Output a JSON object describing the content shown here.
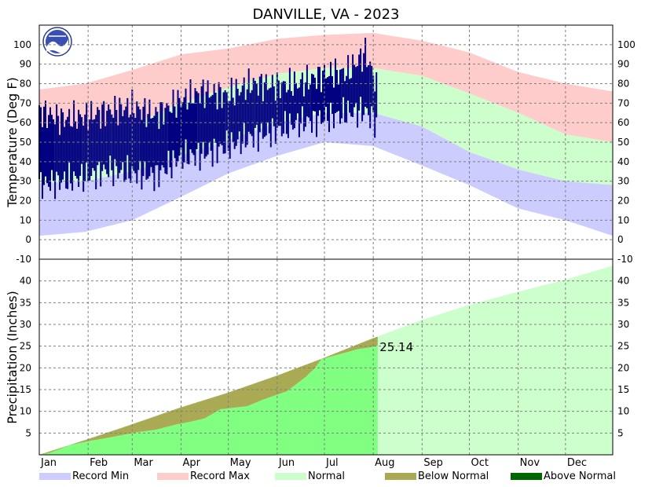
{
  "chart_data": [
    {
      "type": "bar",
      "title": "DANVILLE, VA - 2023",
      "ylabel": "Temperature (Deg F)",
      "ylim": [
        -10,
        110
      ],
      "yticks": [
        -10,
        0,
        10,
        20,
        30,
        40,
        50,
        60,
        70,
        80,
        90,
        100
      ],
      "months": [
        "Jan",
        "Feb",
        "Mar",
        "Apr",
        "May",
        "Jun",
        "Jul",
        "Aug",
        "Sep",
        "Oct",
        "Nov",
        "Dec"
      ],
      "grid": true,
      "colors": {
        "record_min": "#ccccff",
        "record_max": "#ffcccc",
        "normal": "#ccffcc",
        "observed": "#000080"
      },
      "normal_high": [
        {
          "day": 1,
          "value": 50
        },
        {
          "day": 30,
          "value": 52
        },
        {
          "day": 60,
          "value": 59
        },
        {
          "day": 91,
          "value": 70
        },
        {
          "day": 121,
          "value": 78
        },
        {
          "day": 152,
          "value": 85
        },
        {
          "day": 182,
          "value": 88
        },
        {
          "day": 213,
          "value": 88
        },
        {
          "day": 244,
          "value": 84
        },
        {
          "day": 274,
          "value": 75
        },
        {
          "day": 305,
          "value": 65
        },
        {
          "day": 335,
          "value": 54
        },
        {
          "day": 365,
          "value": 50
        }
      ],
      "normal_low": [
        {
          "day": 1,
          "value": 29
        },
        {
          "day": 30,
          "value": 30
        },
        {
          "day": 60,
          "value": 35
        },
        {
          "day": 91,
          "value": 43
        },
        {
          "day": 121,
          "value": 51
        },
        {
          "day": 152,
          "value": 60
        },
        {
          "day": 182,
          "value": 65
        },
        {
          "day": 213,
          "value": 65
        },
        {
          "day": 244,
          "value": 58
        },
        {
          "day": 274,
          "value": 45
        },
        {
          "day": 305,
          "value": 36
        },
        {
          "day": 335,
          "value": 30
        },
        {
          "day": 365,
          "value": 28
        }
      ],
      "record_high": [
        {
          "day": 1,
          "value": 77
        },
        {
          "day": 30,
          "value": 80
        },
        {
          "day": 60,
          "value": 87
        },
        {
          "day": 91,
          "value": 95
        },
        {
          "day": 121,
          "value": 98
        },
        {
          "day": 152,
          "value": 103
        },
        {
          "day": 182,
          "value": 105
        },
        {
          "day": 213,
          "value": 106
        },
        {
          "day": 244,
          "value": 102
        },
        {
          "day": 274,
          "value": 96
        },
        {
          "day": 305,
          "value": 86
        },
        {
          "day": 335,
          "value": 80
        },
        {
          "day": 365,
          "value": 76
        }
      ],
      "record_low": [
        {
          "day": 1,
          "value": 2
        },
        {
          "day": 30,
          "value": 4
        },
        {
          "day": 60,
          "value": 10
        },
        {
          "day": 91,
          "value": 22
        },
        {
          "day": 121,
          "value": 34
        },
        {
          "day": 152,
          "value": 43
        },
        {
          "day": 182,
          "value": 50
        },
        {
          "day": 213,
          "value": 48
        },
        {
          "day": 244,
          "value": 38
        },
        {
          "day": 274,
          "value": 28
        },
        {
          "day": 305,
          "value": 16
        },
        {
          "day": 335,
          "value": 10
        },
        {
          "day": 365,
          "value": 2
        }
      ],
      "observed_high": [
        {
          "day": 1,
          "value": 66
        },
        {
          "day": 15,
          "value": 62
        },
        {
          "day": 30,
          "value": 63
        },
        {
          "day": 45,
          "value": 66
        },
        {
          "day": 60,
          "value": 68
        },
        {
          "day": 75,
          "value": 64
        },
        {
          "day": 90,
          "value": 71
        },
        {
          "day": 105,
          "value": 76
        },
        {
          "day": 121,
          "value": 74
        },
        {
          "day": 136,
          "value": 80
        },
        {
          "day": 152,
          "value": 79
        },
        {
          "day": 166,
          "value": 80
        },
        {
          "day": 182,
          "value": 85
        },
        {
          "day": 197,
          "value": 86
        },
        {
          "day": 208,
          "value": 96
        },
        {
          "day": 215,
          "value": 80
        }
      ],
      "observed_low": [
        {
          "day": 1,
          "value": 28
        },
        {
          "day": 15,
          "value": 30
        },
        {
          "day": 30,
          "value": 32
        },
        {
          "day": 45,
          "value": 36
        },
        {
          "day": 60,
          "value": 34
        },
        {
          "day": 75,
          "value": 33
        },
        {
          "day": 90,
          "value": 42
        },
        {
          "day": 105,
          "value": 44
        },
        {
          "day": 121,
          "value": 48
        },
        {
          "day": 136,
          "value": 53
        },
        {
          "day": 152,
          "value": 56
        },
        {
          "day": 166,
          "value": 60
        },
        {
          "day": 182,
          "value": 62
        },
        {
          "day": 197,
          "value": 65
        },
        {
          "day": 208,
          "value": 66
        },
        {
          "day": 215,
          "value": 60
        }
      ]
    },
    {
      "type": "area",
      "ylabel": "Precipitation (Inches)",
      "ylim": [
        0,
        45
      ],
      "yticks": [
        5,
        10,
        15,
        20,
        25,
        30,
        35,
        40
      ],
      "months": [
        "Jan",
        "Feb",
        "Mar",
        "Apr",
        "May",
        "Jun",
        "Jul",
        "Aug",
        "Sep",
        "Oct",
        "Nov",
        "Dec"
      ],
      "grid": true,
      "colors": {
        "normal": "#ccffcc",
        "observed": "#80ff80",
        "below_normal": "#aaaa55",
        "above_normal": "#006600"
      },
      "normal_cumulative": [
        {
          "day": 1,
          "value": 0
        },
        {
          "day": 31,
          "value": 3.5
        },
        {
          "day": 59,
          "value": 6.9
        },
        {
          "day": 90,
          "value": 10.8
        },
        {
          "day": 120,
          "value": 14.2
        },
        {
          "day": 151,
          "value": 18.1
        },
        {
          "day": 181,
          "value": 22.2
        },
        {
          "day": 212,
          "value": 26.7
        },
        {
          "day": 243,
          "value": 30.9
        },
        {
          "day": 273,
          "value": 34.4
        },
        {
          "day": 304,
          "value": 37.4
        },
        {
          "day": 334,
          "value": 40.2
        },
        {
          "day": 365,
          "value": 43.5
        }
      ],
      "observed_cumulative": [
        {
          "day": 1,
          "value": 0
        },
        {
          "day": 8,
          "value": 0.5
        },
        {
          "day": 20,
          "value": 2.2
        },
        {
          "day": 33,
          "value": 3.2
        },
        {
          "day": 44,
          "value": 3.9
        },
        {
          "day": 63,
          "value": 5.2
        },
        {
          "day": 75,
          "value": 5.8
        },
        {
          "day": 88,
          "value": 7.0
        },
        {
          "day": 98,
          "value": 7.7
        },
        {
          "day": 106,
          "value": 8.4
        },
        {
          "day": 116,
          "value": 10.5
        },
        {
          "day": 133,
          "value": 11.2
        },
        {
          "day": 143,
          "value": 12.7
        },
        {
          "day": 158,
          "value": 14.6
        },
        {
          "day": 170,
          "value": 17.9
        },
        {
          "day": 176,
          "value": 20.0
        },
        {
          "day": 180,
          "value": 22.0
        },
        {
          "day": 192,
          "value": 23.2
        },
        {
          "day": 203,
          "value": 24.3
        },
        {
          "day": 212,
          "value": 24.8
        },
        {
          "day": 215,
          "value": 25.14
        }
      ],
      "annotation": "25.14",
      "annotation_day": 215
    }
  ],
  "legend": [
    {
      "label": "Record Min",
      "color": "#ccccff"
    },
    {
      "label": "Record Max",
      "color": "#ffcccc"
    },
    {
      "label": "Normal",
      "color": "#ccffcc"
    },
    {
      "label": "Below Normal",
      "color": "#aaaa55"
    },
    {
      "label": "Above Normal",
      "color": "#006600"
    }
  ]
}
